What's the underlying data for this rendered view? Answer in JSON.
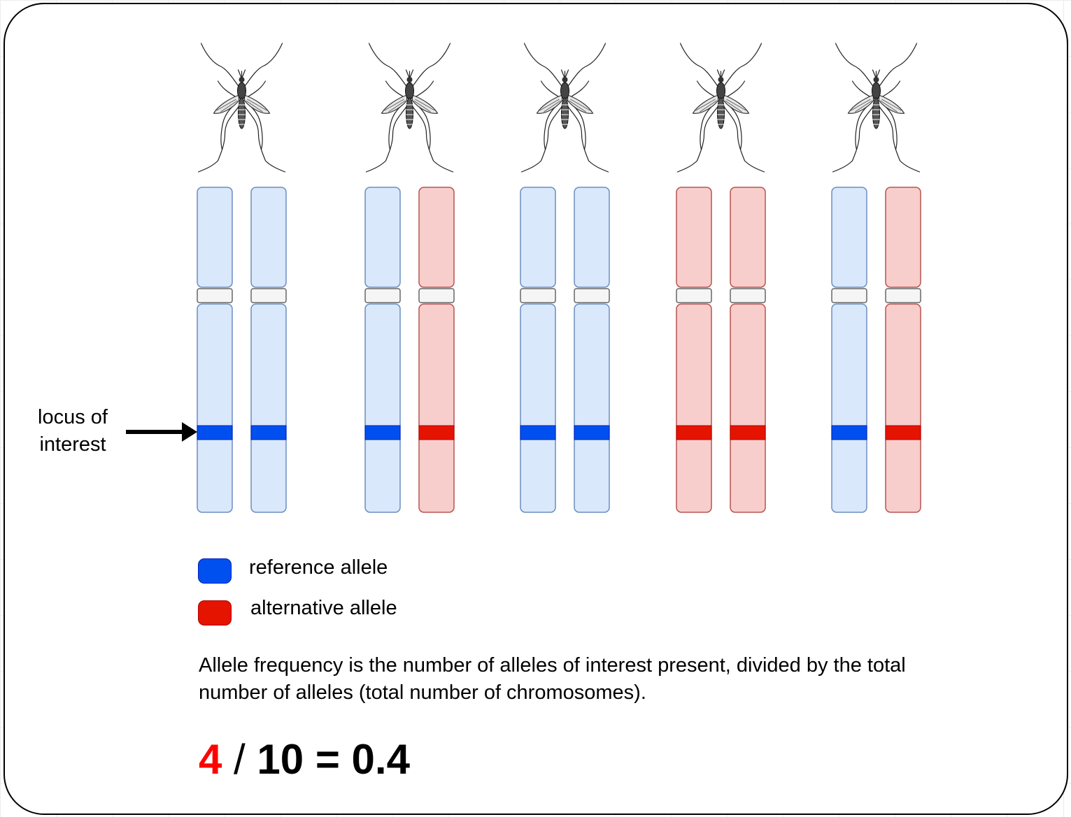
{
  "colors": {
    "reference_fill": "#dae8fc",
    "reference_stroke": "#6c8ebf",
    "reference_allele": "#0050ef",
    "alternative_fill": "#f8cecc",
    "alternative_stroke": "#b85450",
    "alternative_allele": "#e51400",
    "centromere_fill": "#f5f5f5",
    "centromere_stroke": "#666666",
    "count_highlight": "#ff0000"
  },
  "individuals": [
    {
      "id": "mosquito-1",
      "chromosomes": [
        "reference",
        "reference"
      ]
    },
    {
      "id": "mosquito-2",
      "chromosomes": [
        "reference",
        "alternative"
      ]
    },
    {
      "id": "mosquito-3",
      "chromosomes": [
        "reference",
        "reference"
      ]
    },
    {
      "id": "mosquito-4",
      "chromosomes": [
        "alternative",
        "alternative"
      ]
    },
    {
      "id": "mosquito-5",
      "chromosomes": [
        "reference",
        "alternative"
      ]
    }
  ],
  "locus": {
    "label_line1": "locus of",
    "label_line2": "interest"
  },
  "legend": {
    "reference_label": "reference allele",
    "alternative_label": "alternative allele"
  },
  "explanation": {
    "text": "Allele frequency is the number of alleles of interest present, divided by the total number of alleles (total number of chromosomes)."
  },
  "equation": {
    "numerator": "4",
    "slash": "/",
    "denominator": "10",
    "equals": "=",
    "result": "0.4"
  }
}
